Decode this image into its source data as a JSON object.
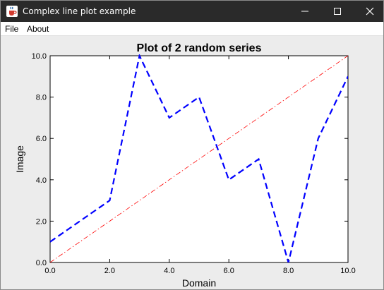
{
  "window": {
    "title": "Complex line plot example",
    "app_icon": "java-cup-icon",
    "buttons": [
      "minimize-icon",
      "maximize-icon",
      "close-icon"
    ]
  },
  "menu": {
    "items": [
      {
        "label": "File"
      },
      {
        "label": "About"
      }
    ]
  },
  "chart_data": {
    "type": "line",
    "title": "Plot of 2 random series",
    "xlabel": "Domain",
    "ylabel": "Image",
    "xlim": [
      0,
      10
    ],
    "ylim": [
      0,
      10
    ],
    "x_ticks": [
      "0.0",
      "2.0",
      "4.0",
      "6.0",
      "8.0",
      "10.0"
    ],
    "y_ticks": [
      "0.0",
      "2.0",
      "4.0",
      "6.0",
      "8.0",
      "10.0"
    ],
    "grid": false,
    "series": [
      {
        "x": [
          0,
          2,
          3,
          4,
          5,
          6,
          7,
          8,
          9,
          10
        ],
        "y": [
          1,
          3,
          10,
          7,
          8,
          4,
          5,
          0,
          6,
          9
        ],
        "color": "#0000ff",
        "style": "dashed"
      },
      {
        "x": [
          0,
          10
        ],
        "y": [
          0,
          10
        ],
        "color": "#ff0000",
        "style": "dash-dot"
      }
    ]
  }
}
